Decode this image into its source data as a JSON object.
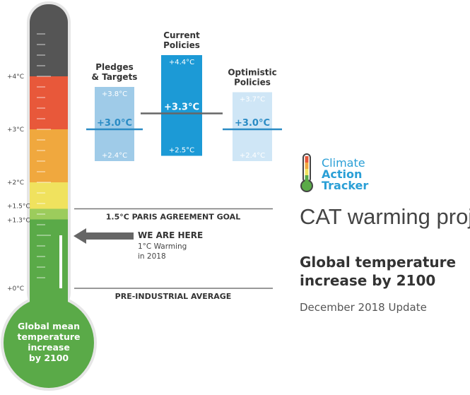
{
  "chart_data": {
    "type": "bar",
    "title": "CAT warming projections",
    "subtitle": [
      "Global temperature",
      "increase by 2100"
    ],
    "date": "December 2018 Update",
    "logo": {
      "lines": [
        "Climate",
        "Action",
        "Tracker"
      ]
    },
    "ylabel": [
      "Global mean",
      "temperature",
      "increase",
      "by 2100"
    ],
    "ylim": [
      0,
      5
    ],
    "ticks": [
      {
        "value": 0,
        "label": "+0°C"
      },
      {
        "value": 1.3,
        "label": "+1.3°C"
      },
      {
        "value": 1.5,
        "label": "+1.5°C"
      },
      {
        "value": 2,
        "label": "+2°C"
      },
      {
        "value": 3,
        "label": "+3°C"
      },
      {
        "value": 4,
        "label": "+4°C"
      }
    ],
    "thermometer_bands": [
      {
        "from": 0,
        "to": 1.3,
        "color": "#5aaa48"
      },
      {
        "from": 1.3,
        "to": 1.5,
        "color": "#9ccc5c"
      },
      {
        "from": 1.5,
        "to": 2,
        "color": "#f0e25e"
      },
      {
        "from": 2,
        "to": 3,
        "color": "#f0a83e"
      },
      {
        "from": 3,
        "to": 4,
        "color": "#e8583a"
      },
      {
        "from": 4,
        "to": 5,
        "color": "#555555"
      }
    ],
    "series": [
      {
        "name": "Pledges & Targets",
        "name_lines": [
          "Pledges",
          "& Targets"
        ],
        "low": 2.4,
        "high": 3.8,
        "mid": 3.0,
        "low_label": "+2.4°C",
        "high_label": "+3.8°C",
        "mid_label": "+3.0°C",
        "color": "#9fcbe8",
        "mid_color": "#2a8bc4"
      },
      {
        "name": "Current Policies",
        "name_lines": [
          "Current",
          "Policies"
        ],
        "low": 2.5,
        "high": 4.4,
        "mid": 3.3,
        "low_label": "+2.5°C",
        "high_label": "+4.4°C",
        "mid_label": "+3.3°C",
        "color": "#1c9ad6",
        "mid_color": "#666666"
      },
      {
        "name": "Optimistic Policies",
        "name_lines": [
          "Optimistic",
          "Policies"
        ],
        "low": 2.4,
        "high": 3.7,
        "mid": 3.0,
        "low_label": "+2.4°C",
        "high_label": "+3.7°C",
        "mid_label": "+3.0°C",
        "color": "#cfe6f6",
        "mid_color": "#2a8bc4"
      }
    ],
    "reference_lines": [
      {
        "value": 1.5,
        "label": "1.5°C PARIS AGREEMENT GOAL"
      },
      {
        "value": 0,
        "label": "PRE-INDUSTRIAL AVERAGE"
      }
    ],
    "current_marker": {
      "value": 1.0,
      "label": "WE ARE HERE",
      "note_lines": [
        "1°C Warming",
        "in 2018"
      ]
    },
    "colors": {
      "accent": "#2a9fd6",
      "green": "#5aaa48",
      "gray": "#555555"
    }
  }
}
